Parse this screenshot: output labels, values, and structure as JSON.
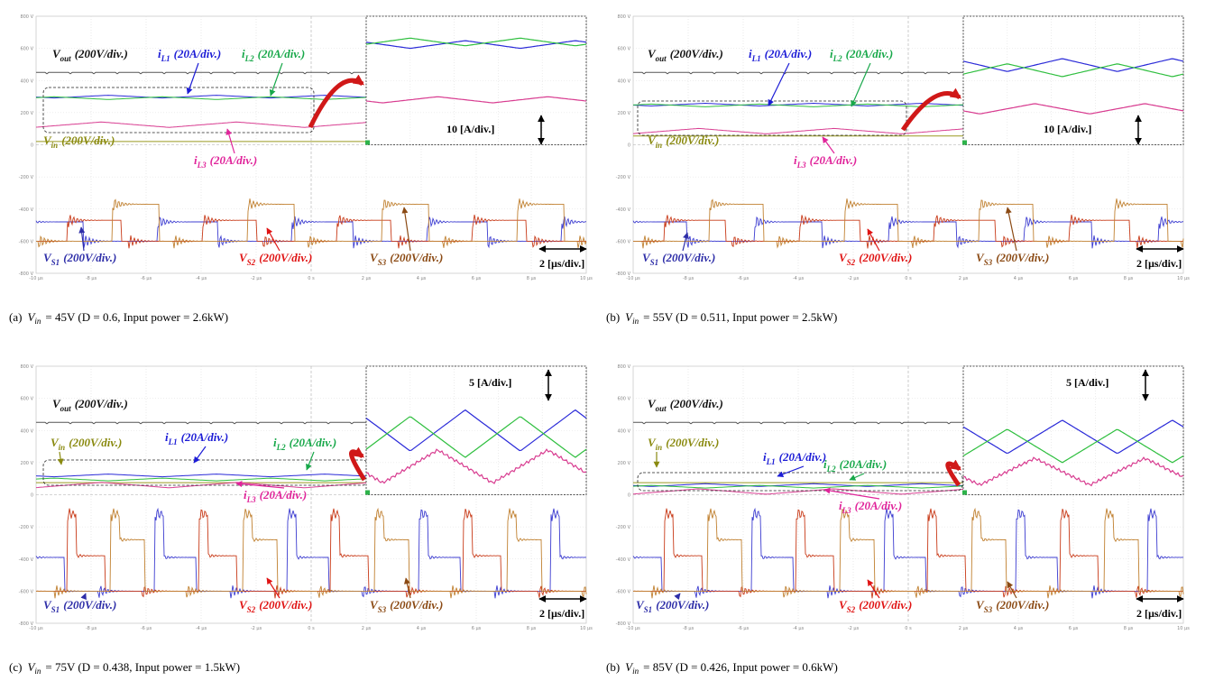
{
  "y_axis_labels": [
    "800 V",
    "600 V",
    "400 V",
    "200 V",
    "0",
    "-200 V",
    "-400 V",
    "-600 V",
    "-800 V"
  ],
  "x_axis_labels": [
    "-10 µs",
    "-8 µs",
    "-6 µs",
    "-4 µs",
    "-2 µs",
    "0 s",
    "2 µs",
    "4 µs",
    "6 µs",
    "8 µs",
    "10 µs"
  ],
  "panels": [
    {
      "labels": {
        "vout": {
          "symbol": "V",
          "sub": "out",
          "scale": "(200V/div.)"
        },
        "il1": {
          "symbol": "i",
          "sub": "L1",
          "scale": "(20A/div.)"
        },
        "il2": {
          "symbol": "i",
          "sub": "L2",
          "scale": "(20A/div.)"
        },
        "il3": {
          "symbol": "i",
          "sub": "L3",
          "scale": "(20A/div.)"
        },
        "vin": {
          "symbol": "V",
          "sub": "in",
          "scale": "(200V/div.)"
        },
        "vs1": {
          "symbol": "V",
          "sub": "S1",
          "scale": "(200V/div.)"
        },
        "vs2": {
          "symbol": "V",
          "sub": "S2",
          "scale": "(200V/div.)"
        },
        "vs3": {
          "symbol": "V",
          "sub": "S3",
          "scale": "(200V/div.)"
        }
      },
      "inset_scale": "10 [A/div.]",
      "time_scale": "2 [µs/div.]",
      "caption": {
        "tag": "(a)",
        "var": "V",
        "sub": "in",
        "rest": "= 45V (D = 0.6, Input power = 2.6kW)"
      }
    },
    {
      "labels": {
        "vout": {
          "symbol": "V",
          "sub": "out",
          "scale": "(200V/div.)"
        },
        "il1": {
          "symbol": "i",
          "sub": "L1",
          "scale": "(20A/div.)"
        },
        "il2": {
          "symbol": "i",
          "sub": "L2",
          "scale": "(20A/div.)"
        },
        "il3": {
          "symbol": "i",
          "sub": "L3",
          "scale": "(20A/div.)"
        },
        "vin": {
          "symbol": "V",
          "sub": "in",
          "scale": "(200V/div.)"
        },
        "vs1": {
          "symbol": "V",
          "sub": "S1",
          "scale": "(200V/div.)"
        },
        "vs2": {
          "symbol": "V",
          "sub": "S2",
          "scale": "(200V/div.)"
        },
        "vs3": {
          "symbol": "V",
          "sub": "S3",
          "scale": "(200V/div.)"
        }
      },
      "inset_scale": "10 [A/div.]",
      "time_scale": "2 [µs/div.]",
      "caption": {
        "tag": "(b)",
        "var": "V",
        "sub": "in",
        "rest": "= 55V (D = 0.511, Input power = 2.5kW)"
      }
    },
    {
      "labels": {
        "vout": {
          "symbol": "V",
          "sub": "out",
          "scale": "(200V/div.)"
        },
        "il1": {
          "symbol": "i",
          "sub": "L1",
          "scale": "(20A/div.)"
        },
        "il2": {
          "symbol": "i",
          "sub": "L2",
          "scale": "(20A/div.)"
        },
        "il3": {
          "symbol": "i",
          "sub": "L3",
          "scale": "(20A/div.)"
        },
        "vin": {
          "symbol": "V",
          "sub": "in",
          "scale": "(200V/div.)"
        },
        "vs1": {
          "symbol": "V",
          "sub": "S1",
          "scale": "(200V/div.)"
        },
        "vs2": {
          "symbol": "V",
          "sub": "S2",
          "scale": "(200V/div.)"
        },
        "vs3": {
          "symbol": "V",
          "sub": "S3",
          "scale": "(200V/div.)"
        }
      },
      "inset_scale": "5 [A/div.]",
      "time_scale": "2 [µs/div.]",
      "caption": {
        "tag": "(c)",
        "var": "V",
        "sub": "in",
        "rest": "= 75V (D = 0.438, Input power = 1.5kW)"
      }
    },
    {
      "labels": {
        "vout": {
          "symbol": "V",
          "sub": "out",
          "scale": "(200V/div.)"
        },
        "il1": {
          "symbol": "i",
          "sub": "L1",
          "scale": "(20A/div.)"
        },
        "il2": {
          "symbol": "i",
          "sub": "L2",
          "scale": "(20A/div.)"
        },
        "il3": {
          "symbol": "i",
          "sub": "L3",
          "scale": "(20A/div.)"
        },
        "vin": {
          "symbol": "V",
          "sub": "in",
          "scale": "(200V/div.)"
        },
        "vs1": {
          "symbol": "V",
          "sub": "S1",
          "scale": "(200V/div.)"
        },
        "vs2": {
          "symbol": "V",
          "sub": "S2",
          "scale": "(200V/div.)"
        },
        "vs3": {
          "symbol": "V",
          "sub": "S3",
          "scale": "(200V/div.)"
        }
      },
      "inset_scale": "5 [A/div.]",
      "time_scale": "2 [µs/div.]",
      "caption": {
        "tag": "(b)",
        "var": "V",
        "sub": "in",
        "rest": "= 85V (D = 0.426, Input power = 0.6kW)"
      }
    }
  ]
}
